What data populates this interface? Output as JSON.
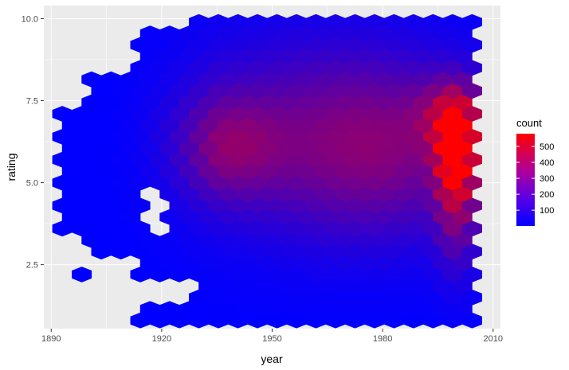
{
  "chart_data": {
    "type": "heatmap",
    "subtype": "hexbin",
    "title": "",
    "xlabel": "year",
    "ylabel": "rating",
    "xlim": [
      1888,
      2012
    ],
    "ylim": [
      0.55,
      10.4
    ],
    "x_ticks": [
      1890,
      1920,
      1950,
      1980,
      2010
    ],
    "y_ticks": [
      2.5,
      5.0,
      7.5,
      10.0
    ],
    "x_tick_labels": [
      "1890",
      "1920",
      "1950",
      "1980",
      "2010"
    ],
    "y_tick_labels": [
      "2.5",
      "5.0",
      "7.5",
      "10.0"
    ],
    "grid": true,
    "hex_bin_width": {
      "year": 5.3,
      "rating": 0.35
    },
    "x_extent": [
      1893,
      2005
    ],
    "y_extent": [
      0.8,
      10.0
    ],
    "hotspots": [
      {
        "year": 2000,
        "rating": 6.2,
        "count": 570
      },
      {
        "year": 2000,
        "rating": 5.6,
        "count": 470
      },
      {
        "year": 2000,
        "rating": 6.8,
        "count": 420
      },
      {
        "year": 1938,
        "rating": 6.1,
        "count": 200
      },
      {
        "year": 1955,
        "rating": 6.1,
        "count": 150
      },
      {
        "year": 1985,
        "rating": 6.0,
        "count": 180
      }
    ],
    "sparse_region_note": "counts low before 1925",
    "legend": {
      "title": "count",
      "position": "right",
      "breaks": [
        100,
        200,
        300,
        400,
        500
      ],
      "break_labels": [
        "100",
        "200",
        "300",
        "400",
        "500"
      ],
      "range": [
        1,
        580
      ],
      "low_color": "#0000ff",
      "high_color": "#ff0000"
    },
    "colors": {
      "panel_background": "#ebebeb",
      "grid_major": "#ffffff"
    }
  }
}
